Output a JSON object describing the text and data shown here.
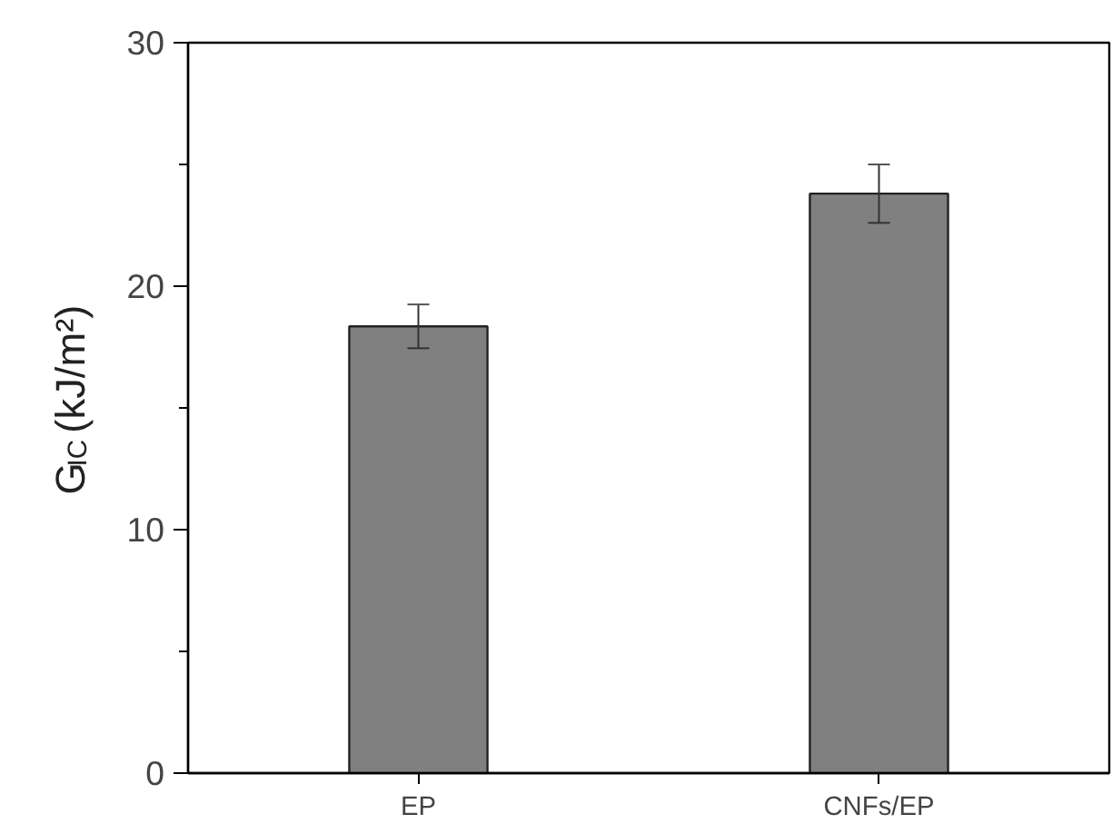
{
  "chart_data": {
    "type": "bar",
    "ylabel": "G$_{IC}$ (kJ/m²)",
    "categories": [
      "EP",
      "CNFs/EP"
    ],
    "values": [
      18.35,
      23.8
    ],
    "errors": [
      0.9,
      1.2
    ],
    "color": "#808080",
    "ylim": [
      0,
      30
    ],
    "yticks": [
      0,
      10,
      20,
      30
    ],
    "grid": false
  }
}
